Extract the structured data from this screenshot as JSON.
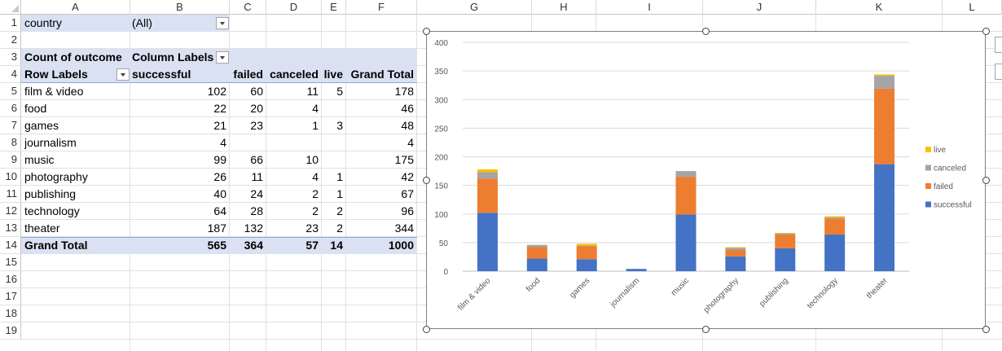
{
  "spreadsheet": {
    "columns": [
      "A",
      "B",
      "C",
      "D",
      "E",
      "F",
      "G",
      "H",
      "I",
      "J",
      "K",
      "L"
    ],
    "rows": [
      "1",
      "2",
      "3",
      "4",
      "5",
      "6",
      "7",
      "8",
      "9",
      "10",
      "11",
      "12",
      "13",
      "14",
      "15",
      "16",
      "17",
      "18",
      "19"
    ]
  },
  "pivot": {
    "filter_label": "country",
    "filter_value": "(All)",
    "value_label": "Count of outcome",
    "column_labels": "Column Labels",
    "row_labels": "Row Labels",
    "headers": [
      "successful",
      "failed",
      "canceled",
      "live",
      "Grand Total"
    ],
    "rows": [
      {
        "label": "film & video",
        "successful": "102",
        "failed": "60",
        "canceled": "11",
        "live": "5",
        "total": "178"
      },
      {
        "label": "food",
        "successful": "22",
        "failed": "20",
        "canceled": "4",
        "live": "",
        "total": "46"
      },
      {
        "label": "games",
        "successful": "21",
        "failed": "23",
        "canceled": "1",
        "live": "3",
        "total": "48"
      },
      {
        "label": "journalism",
        "successful": "4",
        "failed": "",
        "canceled": "",
        "live": "",
        "total": "4"
      },
      {
        "label": "music",
        "successful": "99",
        "failed": "66",
        "canceled": "10",
        "live": "",
        "total": "175"
      },
      {
        "label": "photography",
        "successful": "26",
        "failed": "11",
        "canceled": "4",
        "live": "1",
        "total": "42"
      },
      {
        "label": "publishing",
        "successful": "40",
        "failed": "24",
        "canceled": "2",
        "live": "1",
        "total": "67"
      },
      {
        "label": "technology",
        "successful": "64",
        "failed": "28",
        "canceled": "2",
        "live": "2",
        "total": "96"
      },
      {
        "label": "theater",
        "successful": "187",
        "failed": "132",
        "canceled": "23",
        "live": "2",
        "total": "344"
      }
    ],
    "grand_total": {
      "label": "Grand Total",
      "successful": "565",
      "failed": "364",
      "canceled": "57",
      "live": "14",
      "total": "1000"
    }
  },
  "colors": {
    "successful": "#4472c4",
    "failed": "#ed7d31",
    "canceled": "#a5a5a5",
    "live": "#ffc000",
    "band": "#d9e1f2"
  },
  "chart_data": {
    "type": "bar",
    "stacked": true,
    "categories": [
      "film & video",
      "food",
      "games",
      "journalism",
      "music",
      "photography",
      "publishing",
      "technology",
      "theater"
    ],
    "series": [
      {
        "name": "successful",
        "color": "#4472c4",
        "values": [
          102,
          22,
          21,
          4,
          99,
          26,
          40,
          64,
          187
        ]
      },
      {
        "name": "failed",
        "color": "#ed7d31",
        "values": [
          60,
          20,
          23,
          0,
          66,
          11,
          24,
          28,
          132
        ]
      },
      {
        "name": "canceled",
        "color": "#a5a5a5",
        "values": [
          11,
          4,
          1,
          0,
          10,
          4,
          2,
          2,
          23
        ]
      },
      {
        "name": "live",
        "color": "#ffc000",
        "values": [
          5,
          0,
          3,
          0,
          0,
          1,
          1,
          2,
          2
        ]
      }
    ],
    "ylim": [
      0,
      400
    ],
    "yticks": [
      0,
      50,
      100,
      150,
      200,
      250,
      300,
      350,
      400
    ],
    "grid": true,
    "legend_position": "right",
    "legend_order": [
      "live",
      "canceled",
      "failed",
      "successful"
    ],
    "title": "",
    "xlabel": "",
    "ylabel": ""
  }
}
